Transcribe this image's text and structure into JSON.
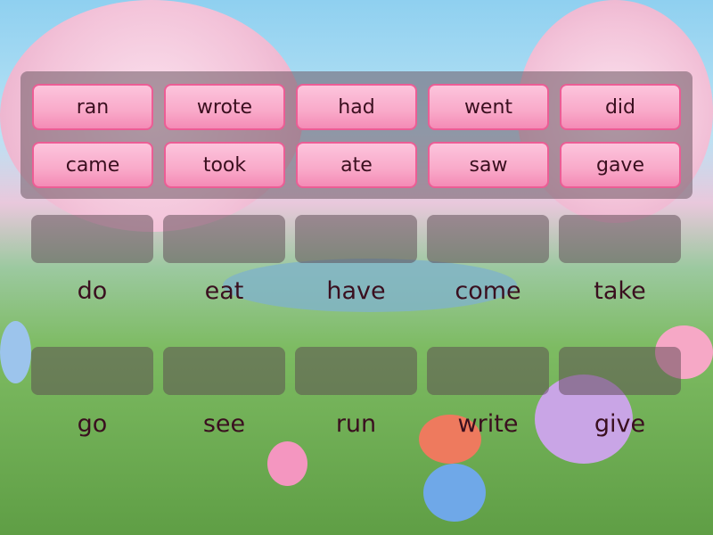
{
  "answers": [
    "ran",
    "wrote",
    "had",
    "went",
    "did",
    "came",
    "took",
    "ate",
    "saw",
    "gave"
  ],
  "targets": [
    "do",
    "eat",
    "have",
    "come",
    "take",
    "go",
    "see",
    "run",
    "write",
    "give"
  ],
  "colors": {
    "tile": "#f9a9c9",
    "tile_border": "#ec5d95",
    "text": "#3a0f1f"
  }
}
